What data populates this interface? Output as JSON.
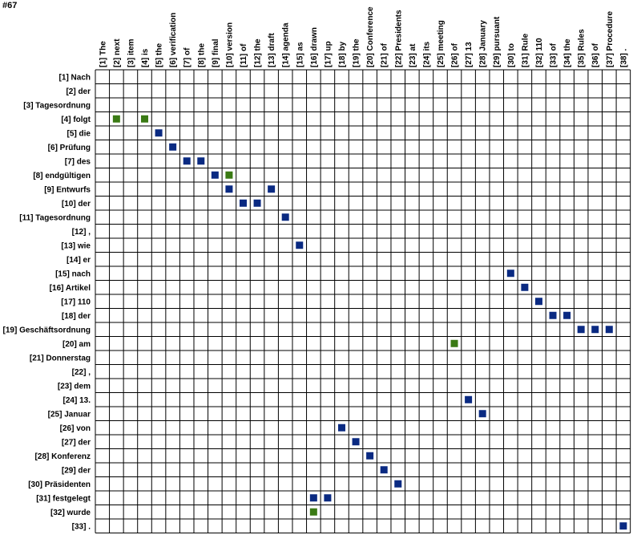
{
  "figure_id": "#67",
  "chart_data": {
    "type": "heatmap",
    "columns": [
      "[1] The",
      "[2] next",
      "[3] item",
      "[4] is",
      "[5] the",
      "[6] verification",
      "[7] of",
      "[8] the",
      "[9] final",
      "[10] version",
      "[11] of",
      "[12] the",
      "[13] draft",
      "[14] agenda",
      "[15] as",
      "[16] drawn",
      "[17] up",
      "[18] by",
      "[19] the",
      "[20] Conference",
      "[21] of",
      "[22] Presidents",
      "[23] at",
      "[24] its",
      "[25] meeting",
      "[26] of",
      "[27] 13",
      "[28] January",
      "[29] pursuant",
      "[30] to",
      "[31] Rule",
      "[32] 110",
      "[33] of",
      "[34] the",
      "[35] Rules",
      "[36] of",
      "[37] Procedure",
      "[38] ."
    ],
    "rows": [
      "[1] Nach",
      "[2] der",
      "[3] Tagesordnung",
      "[4] folgt",
      "[5] die",
      "[6] Prüfung",
      "[7] des",
      "[8] endgültigen",
      "[9] Entwurfs",
      "[10] der",
      "[11] Tagesordnung",
      "[12] ,",
      "[13] wie",
      "[14] er",
      "[15] nach",
      "[16] Artikel",
      "[17] 110",
      "[18] der",
      "[19] Geschäftsordnung",
      "[20] am",
      "[21] Donnerstag",
      "[22] ,",
      "[23] dem",
      "[24] 13.",
      "[25] Januar",
      "[26] von",
      "[27] der",
      "[28] Konferenz",
      "[29] der",
      "[30] Präsidenten",
      "[31] festgelegt",
      "[32] wurde",
      "[33] ."
    ],
    "legend_colors": {
      "blue": "#0a2a82",
      "green": "#3a7a14"
    },
    "alignments": [
      {
        "row": 4,
        "col": 2,
        "color": "green"
      },
      {
        "row": 4,
        "col": 4,
        "color": "green"
      },
      {
        "row": 5,
        "col": 5,
        "color": "blue"
      },
      {
        "row": 6,
        "col": 6,
        "color": "blue"
      },
      {
        "row": 7,
        "col": 7,
        "color": "blue"
      },
      {
        "row": 7,
        "col": 8,
        "color": "blue"
      },
      {
        "row": 8,
        "col": 9,
        "color": "blue"
      },
      {
        "row": 8,
        "col": 10,
        "color": "green"
      },
      {
        "row": 9,
        "col": 10,
        "color": "blue"
      },
      {
        "row": 9,
        "col": 13,
        "color": "blue"
      },
      {
        "row": 10,
        "col": 11,
        "color": "blue"
      },
      {
        "row": 10,
        "col": 12,
        "color": "blue"
      },
      {
        "row": 11,
        "col": 14,
        "color": "blue"
      },
      {
        "row": 13,
        "col": 15,
        "color": "blue"
      },
      {
        "row": 15,
        "col": 30,
        "color": "blue"
      },
      {
        "row": 16,
        "col": 31,
        "color": "blue"
      },
      {
        "row": 17,
        "col": 32,
        "color": "blue"
      },
      {
        "row": 18,
        "col": 33,
        "color": "blue"
      },
      {
        "row": 18,
        "col": 34,
        "color": "blue"
      },
      {
        "row": 19,
        "col": 35,
        "color": "blue"
      },
      {
        "row": 19,
        "col": 36,
        "color": "blue"
      },
      {
        "row": 19,
        "col": 37,
        "color": "blue"
      },
      {
        "row": 20,
        "col": 26,
        "color": "green"
      },
      {
        "row": 24,
        "col": 27,
        "color": "blue"
      },
      {
        "row": 25,
        "col": 28,
        "color": "blue"
      },
      {
        "row": 26,
        "col": 18,
        "color": "blue"
      },
      {
        "row": 27,
        "col": 19,
        "color": "blue"
      },
      {
        "row": 28,
        "col": 20,
        "color": "blue"
      },
      {
        "row": 29,
        "col": 21,
        "color": "blue"
      },
      {
        "row": 30,
        "col": 22,
        "color": "blue"
      },
      {
        "row": 31,
        "col": 16,
        "color": "blue"
      },
      {
        "row": 31,
        "col": 17,
        "color": "blue"
      },
      {
        "row": 32,
        "col": 16,
        "color": "green"
      },
      {
        "row": 33,
        "col": 38,
        "color": "blue"
      }
    ]
  }
}
